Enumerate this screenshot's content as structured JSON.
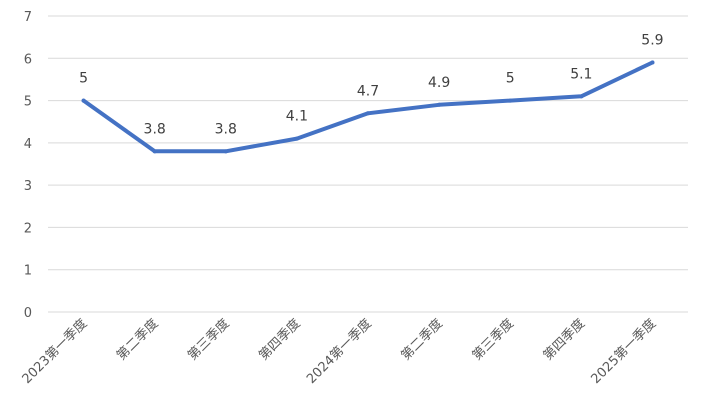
{
  "chart_data": {
    "type": "line",
    "categories": [
      "2023第一季度",
      "第二季度",
      "第三季度",
      "第四季度",
      "2024第一季度",
      "第二季度",
      "第三季度",
      "第四季度",
      "2025第一季度"
    ],
    "series": [
      {
        "values": [
          5,
          3.8,
          3.8,
          4.1,
          4.7,
          4.9,
          5,
          5.1,
          5.9
        ],
        "data_labels": [
          "5",
          "3.8",
          "3.8",
          "4.1",
          "4.7",
          "4.9",
          "5",
          "5.1",
          "5.9"
        ]
      }
    ],
    "yticks": [
      "0",
      "1",
      "2",
      "3",
      "4",
      "5",
      "6",
      "7"
    ],
    "ylim": [
      0,
      7
    ],
    "grid": true,
    "line_color": "#4472C4",
    "grid_color": "#d9d9d9"
  }
}
